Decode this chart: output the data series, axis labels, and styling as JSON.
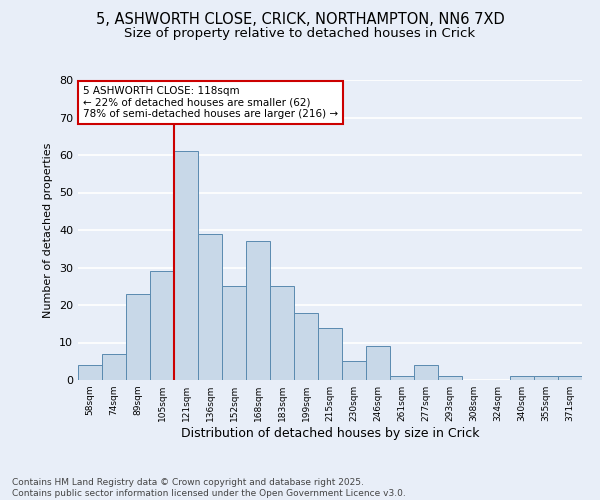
{
  "title_line1": "5, ASHWORTH CLOSE, CRICK, NORTHAMPTON, NN6 7XD",
  "title_line2": "Size of property relative to detached houses in Crick",
  "xlabel": "Distribution of detached houses by size in Crick",
  "ylabel": "Number of detached properties",
  "categories": [
    "58sqm",
    "74sqm",
    "89sqm",
    "105sqm",
    "121sqm",
    "136sqm",
    "152sqm",
    "168sqm",
    "183sqm",
    "199sqm",
    "215sqm",
    "230sqm",
    "246sqm",
    "261sqm",
    "277sqm",
    "293sqm",
    "308sqm",
    "324sqm",
    "340sqm",
    "355sqm",
    "371sqm"
  ],
  "values": [
    4,
    7,
    23,
    29,
    61,
    39,
    25,
    37,
    25,
    18,
    14,
    5,
    9,
    1,
    4,
    1,
    0,
    0,
    1,
    1,
    1
  ],
  "bar_color": "#c8d8e8",
  "bar_edge_color": "#5a8ab0",
  "vline_x_index": 4,
  "vline_color": "#cc0000",
  "annotation_text": "5 ASHWORTH CLOSE: 118sqm\n← 22% of detached houses are smaller (62)\n78% of semi-detached houses are larger (216) →",
  "annotation_box_color": "#ffffff",
  "annotation_box_edge": "#cc0000",
  "ylim": [
    0,
    80
  ],
  "yticks": [
    0,
    10,
    20,
    30,
    40,
    50,
    60,
    70,
    80
  ],
  "background_color": "#e8eef8",
  "plot_background": "#e8eef8",
  "grid_color": "#ffffff",
  "footer": "Contains HM Land Registry data © Crown copyright and database right 2025.\nContains public sector information licensed under the Open Government Licence v3.0.",
  "title_fontsize": 10.5,
  "subtitle_fontsize": 9.5,
  "annotation_fontsize": 7.5,
  "footer_fontsize": 6.5,
  "ylabel_fontsize": 8,
  "xlabel_fontsize": 9
}
